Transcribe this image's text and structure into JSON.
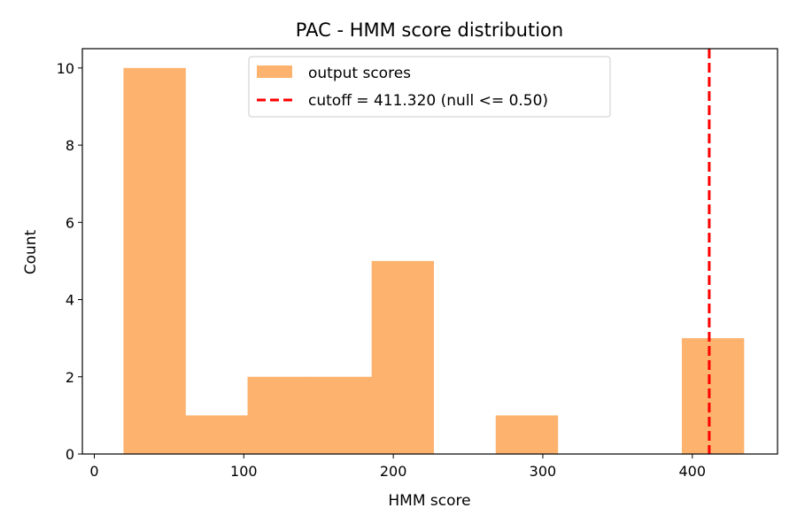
{
  "chart_data": {
    "type": "bar",
    "title": "PAC - HMM score distribution",
    "xlabel": "HMM score",
    "ylabel": "Count",
    "xlim": [
      -8,
      457
    ],
    "ylim": [
      0,
      10.5
    ],
    "x_ticks": [
      0,
      100,
      200,
      300,
      400
    ],
    "y_ticks": [
      0,
      2,
      4,
      6,
      8,
      10
    ],
    "bins": [
      {
        "x0": 19.5,
        "x1": 61.0,
        "count": 10
      },
      {
        "x0": 61.0,
        "x1": 102.5,
        "count": 1
      },
      {
        "x0": 102.5,
        "x1": 144.0,
        "count": 2
      },
      {
        "x0": 144.0,
        "x1": 185.5,
        "count": 2
      },
      {
        "x0": 185.5,
        "x1": 227.0,
        "count": 5
      },
      {
        "x0": 227.0,
        "x1": 268.5,
        "count": 0
      },
      {
        "x0": 268.5,
        "x1": 310.0,
        "count": 1
      },
      {
        "x0": 310.0,
        "x1": 351.5,
        "count": 0
      },
      {
        "x0": 351.5,
        "x1": 393.0,
        "count": 0
      },
      {
        "x0": 393.0,
        "x1": 434.5,
        "count": 3
      }
    ],
    "series": [
      {
        "name": "output scores",
        "kind": "histogram",
        "color": "#fdb26e"
      },
      {
        "name": "cutoff = 411.320 (null <= 0.50)",
        "kind": "vline",
        "x": 411.32,
        "color": "#ff0000",
        "style": "dashed"
      }
    ],
    "legend_position": "upper-center",
    "grid": false
  }
}
